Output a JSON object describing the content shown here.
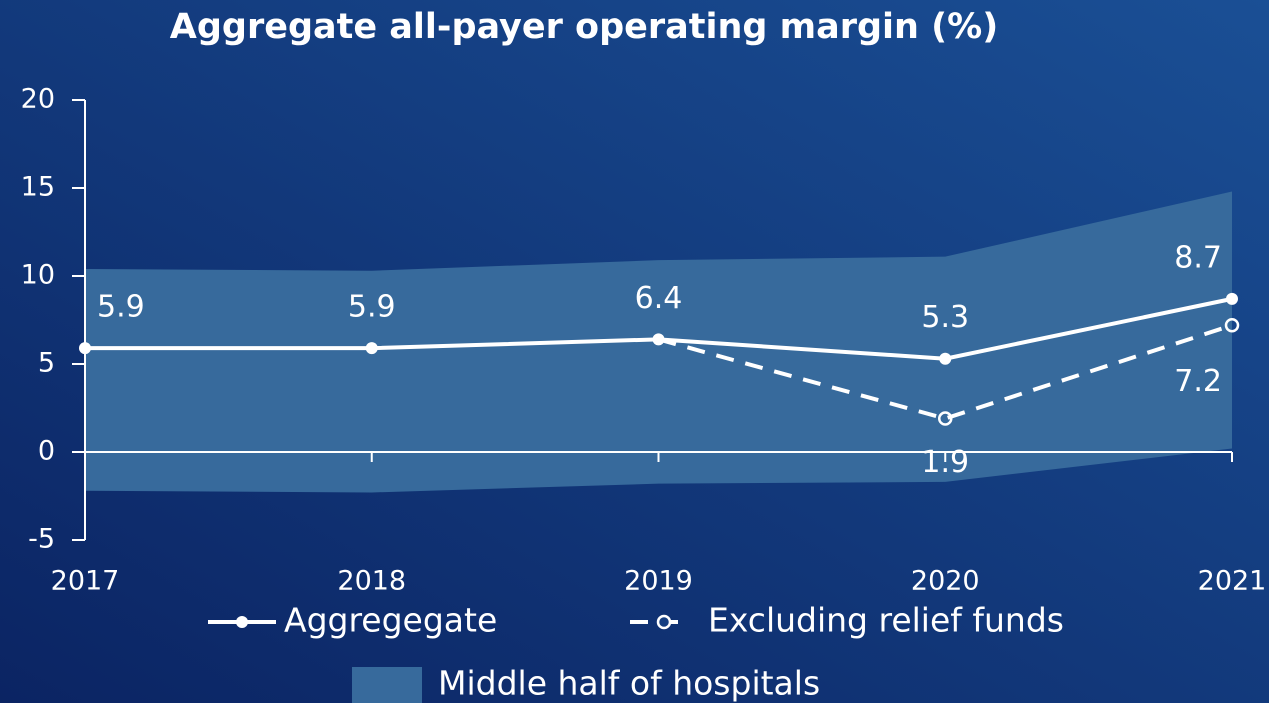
{
  "chart_data": {
    "type": "line",
    "title": "Aggregate all-payer operating margin (%)",
    "x": [
      2017,
      2018,
      2019,
      2020,
      2021
    ],
    "xlim": [
      2017,
      2021
    ],
    "ylim": [
      -5,
      20
    ],
    "yticks": [
      -5,
      0,
      5,
      10,
      15,
      20
    ],
    "band": {
      "name": "Middle half of hospitals",
      "color": "#376a9c",
      "upper": [
        10.4,
        10.3,
        10.9,
        11.1,
        14.8
      ],
      "lower": [
        -2.2,
        -2.3,
        -1.8,
        -1.7,
        0.2
      ]
    },
    "series": [
      {
        "name": "Aggregegate",
        "color": "#ffffff",
        "dash": false,
        "values": [
          5.9,
          5.9,
          6.4,
          5.3,
          8.7
        ]
      },
      {
        "name": "Excluding relief funds",
        "color": "#ffffff",
        "dash": true,
        "values": [
          null,
          null,
          6.4,
          1.9,
          7.2
        ]
      }
    ]
  }
}
